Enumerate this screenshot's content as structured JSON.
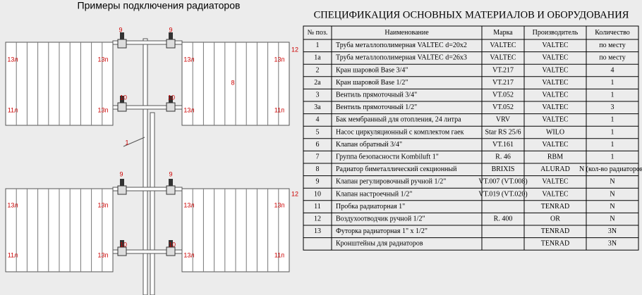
{
  "header": {
    "title": "Примеры подключения радиаторов"
  },
  "table": {
    "title": "СПЕЦИФИКАЦИЯ ОСНОВНЫХ МАТЕРИАЛОВ И ОБОРУДОВАНИЯ",
    "columns": [
      "№ поз.",
      "Наименование",
      "Марка",
      "Производитель",
      "Количество"
    ],
    "rows": [
      [
        "1",
        "Труба металлополимерная VALTEC d=20x2",
        "VALTEC",
        "VALTEC",
        "по месту"
      ],
      [
        "1а",
        "Труба металлополимерная VALTEC d=26x3",
        "VALTEC",
        "VALTEC",
        "по месту"
      ],
      [
        "2",
        "Кран шаровой  Base 3/4\"",
        "VT.217",
        "VALTEC",
        "4"
      ],
      [
        "2а",
        "Кран шаровой  Base 1/2\"",
        "VT.217",
        "VALTEC",
        "1"
      ],
      [
        "3",
        "Вентиль прямоточный    3/4\"",
        "VT.052",
        "VALTEC",
        "1"
      ],
      [
        "3а",
        "Вентиль прямоточный    1/2\"",
        "VT.052",
        "VALTEC",
        "3"
      ],
      [
        "4",
        "Бак  мембранный для отопления,  24 литра",
        "VRV",
        "VALTEC",
        "1"
      ],
      [
        "5",
        "Насос циркуляционный с комплектом гаек",
        "Star RS 25/6",
        "WILO",
        "1"
      ],
      [
        "6",
        "Клапан обратный   3/4\"",
        "VT.161",
        "VALTEC",
        "1"
      ],
      [
        "7",
        "Группа безопасности Kombiluft  1\"",
        "R. 46",
        "RBM",
        "1"
      ],
      [
        "8",
        "Радиатор биметаллический секционный",
        "BRIXIS",
        "ALURAD",
        "N (кол-во радиаторов)"
      ],
      [
        "9",
        "Клапан регулировочный ручной 1/2\"",
        "VT.007 (VT.008)",
        "VALTEC",
        "N"
      ],
      [
        "10",
        "Клапан настроечный  1/2\"",
        "VT.019 (VT.020)",
        "VALTEC",
        "N"
      ],
      [
        "11",
        "Пробка радиаторная  1\"",
        null,
        "TENRAD",
        "N"
      ],
      [
        "12",
        "Воздухоотводчик ручной  1/2\"",
        "R. 400",
        "OR",
        "N"
      ],
      [
        "13",
        "Футорка радиаторная  1\" x 1/2\"",
        null,
        "TENRAD",
        "3N"
      ],
      [
        null,
        "Кронштейны для радиаторов",
        null,
        "TENRAD",
        "3N"
      ]
    ]
  },
  "diagram": {
    "labels": [
      "9",
      "9",
      "10",
      "10",
      "13л",
      "13п",
      "13л",
      "13п",
      "12",
      "11л",
      "13п",
      "13л",
      "11п",
      "8",
      "1",
      "9",
      "9",
      "10",
      "10",
      "13л",
      "13п",
      "13л",
      "13п",
      "12",
      "11л",
      "13п",
      "13л",
      "11п"
    ]
  }
}
